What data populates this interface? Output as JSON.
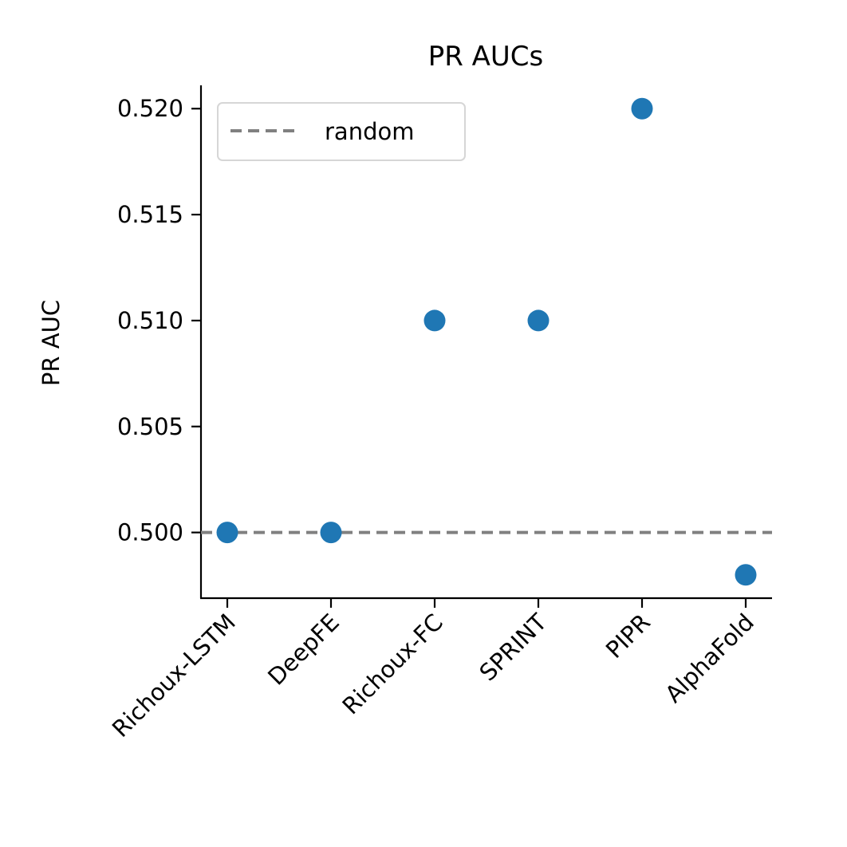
{
  "chart_data": {
    "type": "scatter",
    "title": "PR AUCs",
    "xlabel": "",
    "ylabel": "PR AUC",
    "categories": [
      "Richoux-LSTM",
      "DeepFE",
      "Richoux-FC",
      "SPRINT",
      "PIPR",
      "AlphaFold"
    ],
    "series": [
      {
        "values": [
          0.5,
          0.5,
          0.51,
          0.51,
          0.52,
          0.498
        ],
        "color": "#1f77b4"
      }
    ],
    "reference_lines": [
      {
        "name": "random",
        "y": 0.5,
        "color": "#808080",
        "style": "dashed"
      }
    ],
    "ylim": [
      0.4969,
      0.5211
    ],
    "yticks": [
      0.5,
      0.505,
      0.51,
      0.515,
      0.52
    ],
    "ytick_labels": [
      "0.500",
      "0.505",
      "0.510",
      "0.515",
      "0.520"
    ],
    "legend": {
      "placement": "top-left",
      "entries": [
        "random"
      ]
    },
    "grid": false
  }
}
